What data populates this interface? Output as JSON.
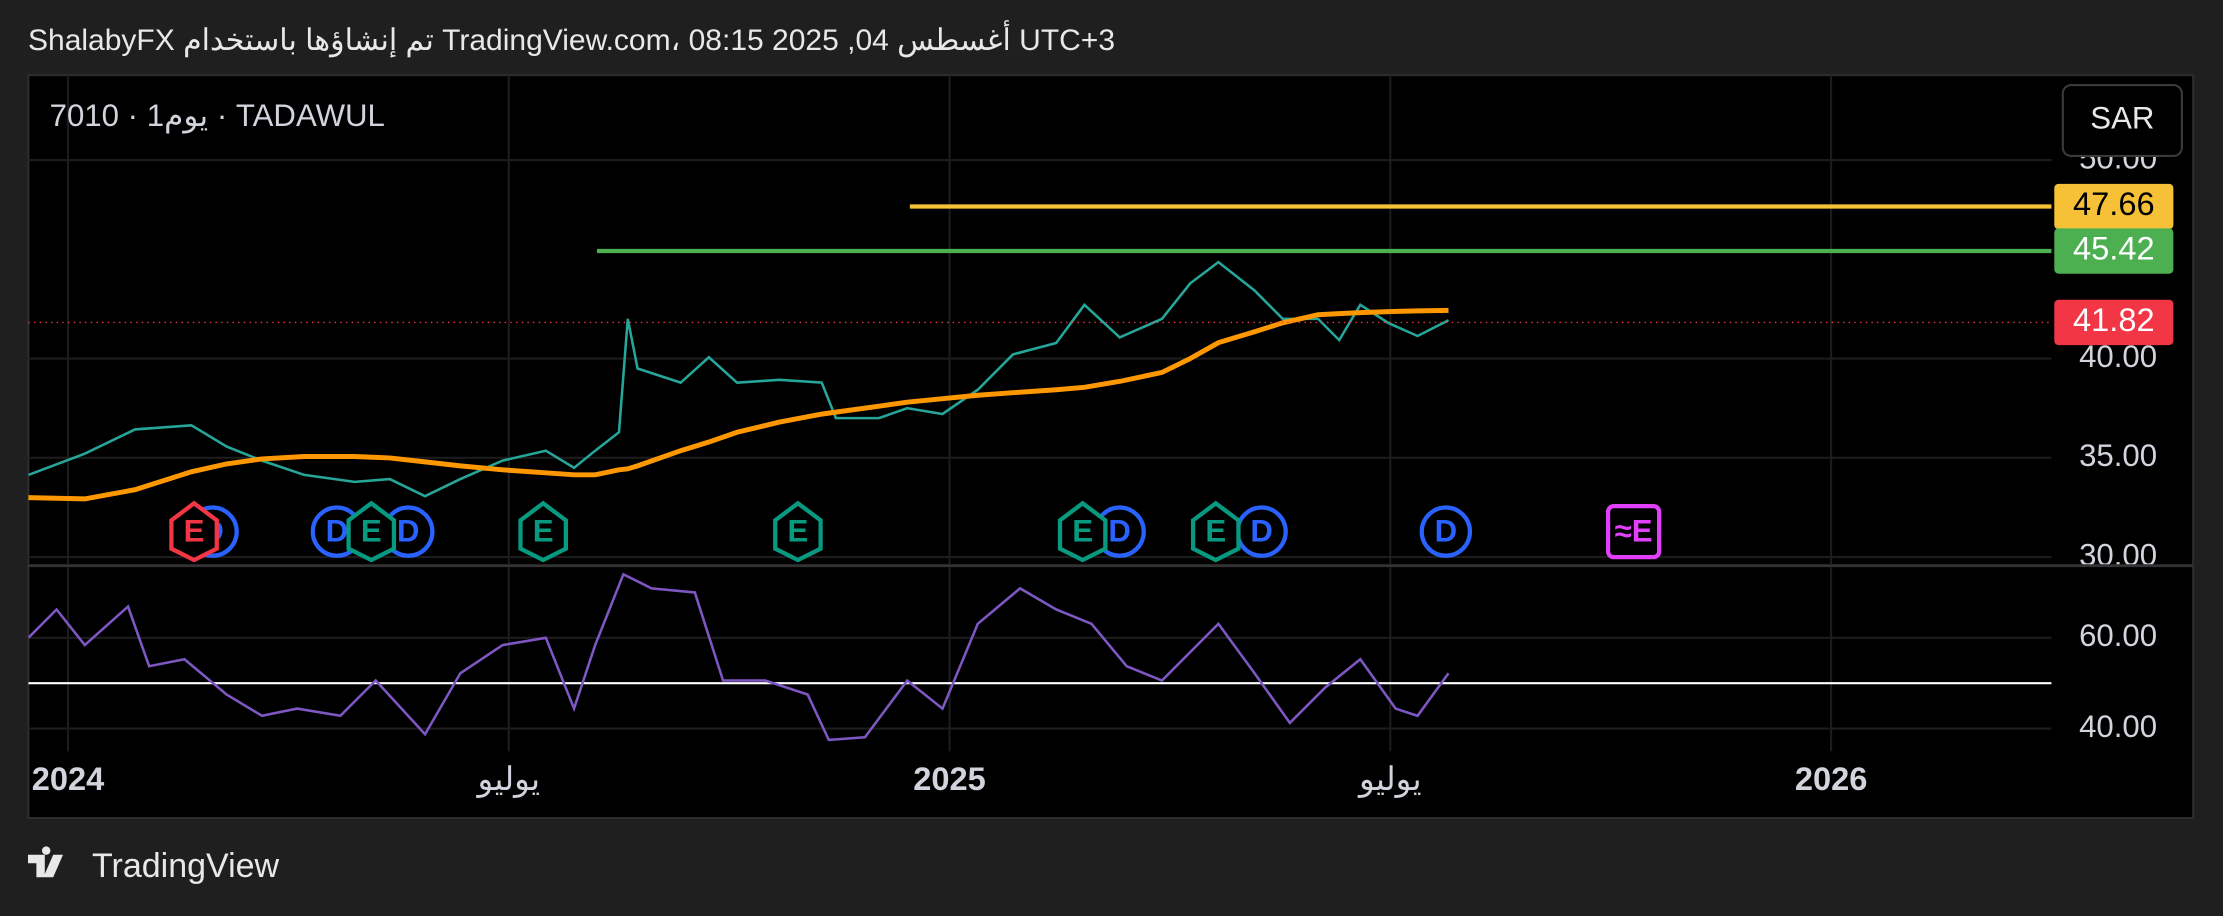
{
  "header": "ShalabyFX تم إنشاؤها باستخدام TradingView.com، 08:15 2025 ,04 أغسطس UTC+3",
  "legend": "7010 · 1يوم · TADAWUL",
  "currency": "SAR",
  "footer": "TradingView",
  "chart_data": [
    {
      "type": "line",
      "x": [
        2023.955,
        2024.019,
        2024.076,
        2024.14,
        2024.18,
        2024.22,
        2024.268,
        2024.325,
        2024.365,
        2024.405,
        2024.445,
        2024.493,
        2024.542,
        2024.574,
        2024.598,
        2024.625,
        2024.635,
        2024.646,
        2024.695,
        2024.727,
        2024.759,
        2024.807,
        2024.855,
        2024.871,
        2024.92,
        2024.952,
        2024.992,
        2025.032,
        2025.072,
        2025.121,
        2025.153,
        2025.193,
        2025.241,
        2025.273,
        2025.305,
        2025.346,
        2025.378,
        2025.418,
        2025.442,
        2025.466,
        2025.498,
        2025.531,
        2025.566
      ],
      "series": [
        {
          "color": "#26a69a",
          "values": [
            34.14,
            35.21,
            36.43,
            36.64,
            35.57,
            34.86,
            34.14,
            33.79,
            33.93,
            33.07,
            33.93,
            34.86,
            35.36,
            34.5,
            35.36,
            36.29,
            42.0,
            39.5,
            38.79,
            40.07,
            38.79,
            38.93,
            38.79,
            37.0,
            37.0,
            37.5,
            37.21,
            38.43,
            40.21,
            40.79,
            42.71,
            41.07,
            42.0,
            43.79,
            44.86,
            43.43,
            42.0,
            42.0,
            40.93,
            42.71,
            41.79,
            41.14,
            41.93
          ]
        },
        {
          "color": "#ff9800",
          "values": [
            33.0,
            32.93,
            33.4,
            34.3,
            34.7,
            34.95,
            35.07,
            35.07,
            35.0,
            34.8,
            34.6,
            34.4,
            34.25,
            34.15,
            34.15,
            34.4,
            34.45,
            34.6,
            35.36,
            35.8,
            36.29,
            36.8,
            37.2,
            37.3,
            37.6,
            37.8,
            37.98,
            38.15,
            38.28,
            38.43,
            38.55,
            38.85,
            39.3,
            40.0,
            40.8,
            41.35,
            41.8,
            42.21,
            42.27,
            42.32,
            42.37,
            42.4,
            42.43
          ]
        }
      ],
      "xlim": [
        2023.955,
        2026.25
      ],
      "xticks": [
        {
          "value": 2024,
          "label": "2024"
        },
        {
          "value": 2024.5,
          "label": "يوليو"
        },
        {
          "value": 2025,
          "label": "2025"
        },
        {
          "value": 2025.5,
          "label": "يوليو"
        },
        {
          "value": 2026,
          "label": "2026"
        }
      ],
      "ylim": [
        29.64,
        54.28
      ],
      "yticks": [
        {
          "value": 30,
          "label": "30.00"
        },
        {
          "value": 35,
          "label": "35.00"
        },
        {
          "value": 40,
          "label": "40.00"
        },
        {
          "value": 50,
          "label": "50.00"
        }
      ],
      "grid": true,
      "hlines": {
        "values": [
          47.66,
          45.42,
          41.82
        ],
        "value_labels": [
          "47.66",
          "45.42",
          "41.82"
        ],
        "colors": [
          "#f7c137",
          "#4caf50",
          "#f23645"
        ],
        "starts": [
          2024.955,
          2024.6,
          null
        ]
      },
      "events": [
        {
          "label": "D",
          "x": 2024.164,
          "color": "#2962ff"
        },
        {
          "label": "E",
          "x": 2024.143,
          "color": "#f23645"
        },
        {
          "label": "D",
          "x": 2024.305,
          "color": "#2962ff"
        },
        {
          "label": "D",
          "x": 2024.386,
          "color": "#2962ff"
        },
        {
          "label": "E",
          "x": 2024.344,
          "color": "#089981"
        },
        {
          "label": "E",
          "x": 2024.539,
          "color": "#089981"
        },
        {
          "label": "E",
          "x": 2024.828,
          "color": "#089981"
        },
        {
          "label": "D",
          "x": 2025.193,
          "color": "#2962ff"
        },
        {
          "label": "E",
          "x": 2025.151,
          "color": "#089981"
        },
        {
          "label": "D",
          "x": 2025.354,
          "color": "#2962ff"
        },
        {
          "label": "E",
          "x": 2025.302,
          "color": "#089981"
        },
        {
          "label": "D",
          "x": 2025.563,
          "color": "#2962ff"
        },
        {
          "label": "≈E",
          "x": 2025.776,
          "color": "#e040fb"
        }
      ]
    },
    {
      "type": "line",
      "x": [
        2023.955,
        2023.987,
        2024.019,
        2024.068,
        2024.092,
        2024.132,
        2024.18,
        2024.22,
        2024.26,
        2024.309,
        2024.349,
        2024.405,
        2024.445,
        2024.493,
        2024.542,
        2024.574,
        2024.598,
        2024.63,
        2024.662,
        2024.711,
        2024.743,
        2024.791,
        2024.839,
        2024.863,
        2024.904,
        2024.952,
        2024.992,
        2025.032,
        2025.08,
        2025.121,
        2025.161,
        2025.201,
        2025.241,
        2025.305,
        2025.346,
        2025.386,
        2025.426,
        2025.466,
        2025.506,
        2025.531,
        2025.566
      ],
      "series": [
        {
          "color": "#7e57c2",
          "values": [
            60,
            66.25,
            58.4,
            66.9,
            53.75,
            55.3,
            47.5,
            42.8,
            44.4,
            42.8,
            50.6,
            38.75,
            52.2,
            58.4,
            60,
            44.4,
            58.4,
            74,
            70.9,
            70,
            50.6,
            50.6,
            47.5,
            37.5,
            38.1,
            50.6,
            44.4,
            63.1,
            70.9,
            66.25,
            63.1,
            53.75,
            50.6,
            63.1,
            52.2,
            41.25,
            49,
            55.3,
            44.4,
            42.8,
            52.2
          ]
        }
      ],
      "xlim": [
        2023.955,
        2026.25
      ],
      "ylim": [
        34.97,
        75.6
      ],
      "yticks": [
        {
          "value": 40,
          "label": "40.00"
        },
        {
          "value": 60,
          "label": "60.00"
        }
      ],
      "hline": 50
    }
  ]
}
